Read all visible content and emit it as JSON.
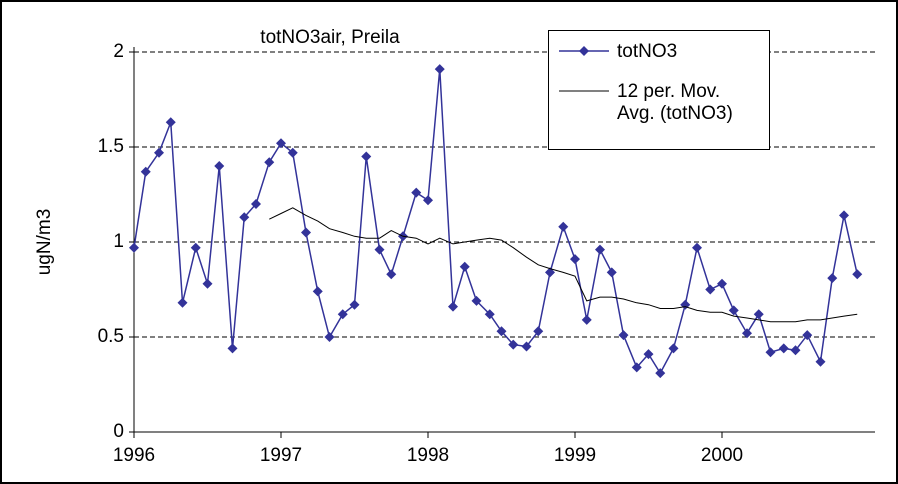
{
  "chart_data": {
    "type": "line",
    "title": "totNO3air, Preila",
    "y_label": "ugN/m3",
    "x": [
      1996,
      1996.08,
      1996.17,
      1996.25,
      1996.33,
      1996.42,
      1996.5,
      1996.58,
      1996.67,
      1996.75,
      1996.83,
      1996.92,
      1997,
      1997.08,
      1997.17,
      1997.25,
      1997.33,
      1997.42,
      1997.5,
      1997.58,
      1997.67,
      1997.75,
      1997.83,
      1997.92,
      1998,
      1998.08,
      1998.17,
      1998.25,
      1998.33,
      1998.42,
      1998.5,
      1998.58,
      1998.67,
      1998.75,
      1998.83,
      1998.92,
      1999,
      1999.08,
      1999.17,
      1999.25,
      1999.33,
      1999.42,
      1999.5,
      1999.58,
      1999.67,
      1999.75,
      1999.83,
      1999.92,
      2000,
      2000.08,
      2000.17,
      2000.25,
      2000.33,
      2000.42,
      2000.5,
      2000.58,
      2000.67,
      2000.75,
      2000.83,
      2000.92
    ],
    "series": [
      {
        "name": "totNO3",
        "color": "#333399",
        "marker": "diamond",
        "values": [
          0.97,
          1.37,
          1.47,
          1.63,
          0.68,
          0.97,
          0.78,
          1.4,
          0.44,
          1.13,
          1.2,
          1.42,
          1.52,
          1.47,
          1.05,
          0.74,
          0.5,
          0.62,
          0.67,
          1.45,
          0.96,
          0.83,
          1.03,
          1.26,
          1.22,
          1.91,
          0.66,
          0.87,
          0.69,
          0.62,
          0.53,
          0.46,
          0.45,
          0.53,
          0.84,
          1.08,
          0.91,
          0.59,
          0.96,
          0.84,
          0.51,
          0.34,
          0.41,
          0.31,
          0.44,
          0.67,
          0.97,
          0.75,
          0.78,
          0.64,
          0.52,
          0.62,
          0.42,
          0.44,
          0.43,
          0.51,
          0.37,
          0.81,
          1.14,
          0.83
        ]
      },
      {
        "name": "12 per. Mov. Avg. (totNO3)",
        "color": "#000000",
        "marker": "none",
        "values": [
          null,
          null,
          null,
          null,
          null,
          null,
          null,
          null,
          null,
          null,
          null,
          1.12,
          1.15,
          1.18,
          1.14,
          1.11,
          1.07,
          1.05,
          1.03,
          1.02,
          1.02,
          1.06,
          1.03,
          1.02,
          0.99,
          1.02,
          0.99,
          1.0,
          1.01,
          1.02,
          1.01,
          0.97,
          0.92,
          0.88,
          0.86,
          0.84,
          0.82,
          0.69,
          0.71,
          0.71,
          0.7,
          0.68,
          0.67,
          0.65,
          0.65,
          0.66,
          0.64,
          0.63,
          0.63,
          0.61,
          0.6,
          0.59,
          0.58,
          0.58,
          0.58,
          0.59,
          0.59,
          0.6,
          0.61,
          0.62
        ]
      }
    ],
    "xlim": [
      1996,
      2001
    ],
    "xticks": [
      1996,
      1997,
      1998,
      1999,
      2000
    ],
    "ylim": [
      0,
      2
    ],
    "yticks": [
      0,
      0.5,
      1,
      1.5,
      2
    ],
    "grid": true,
    "legend": "upper right"
  }
}
